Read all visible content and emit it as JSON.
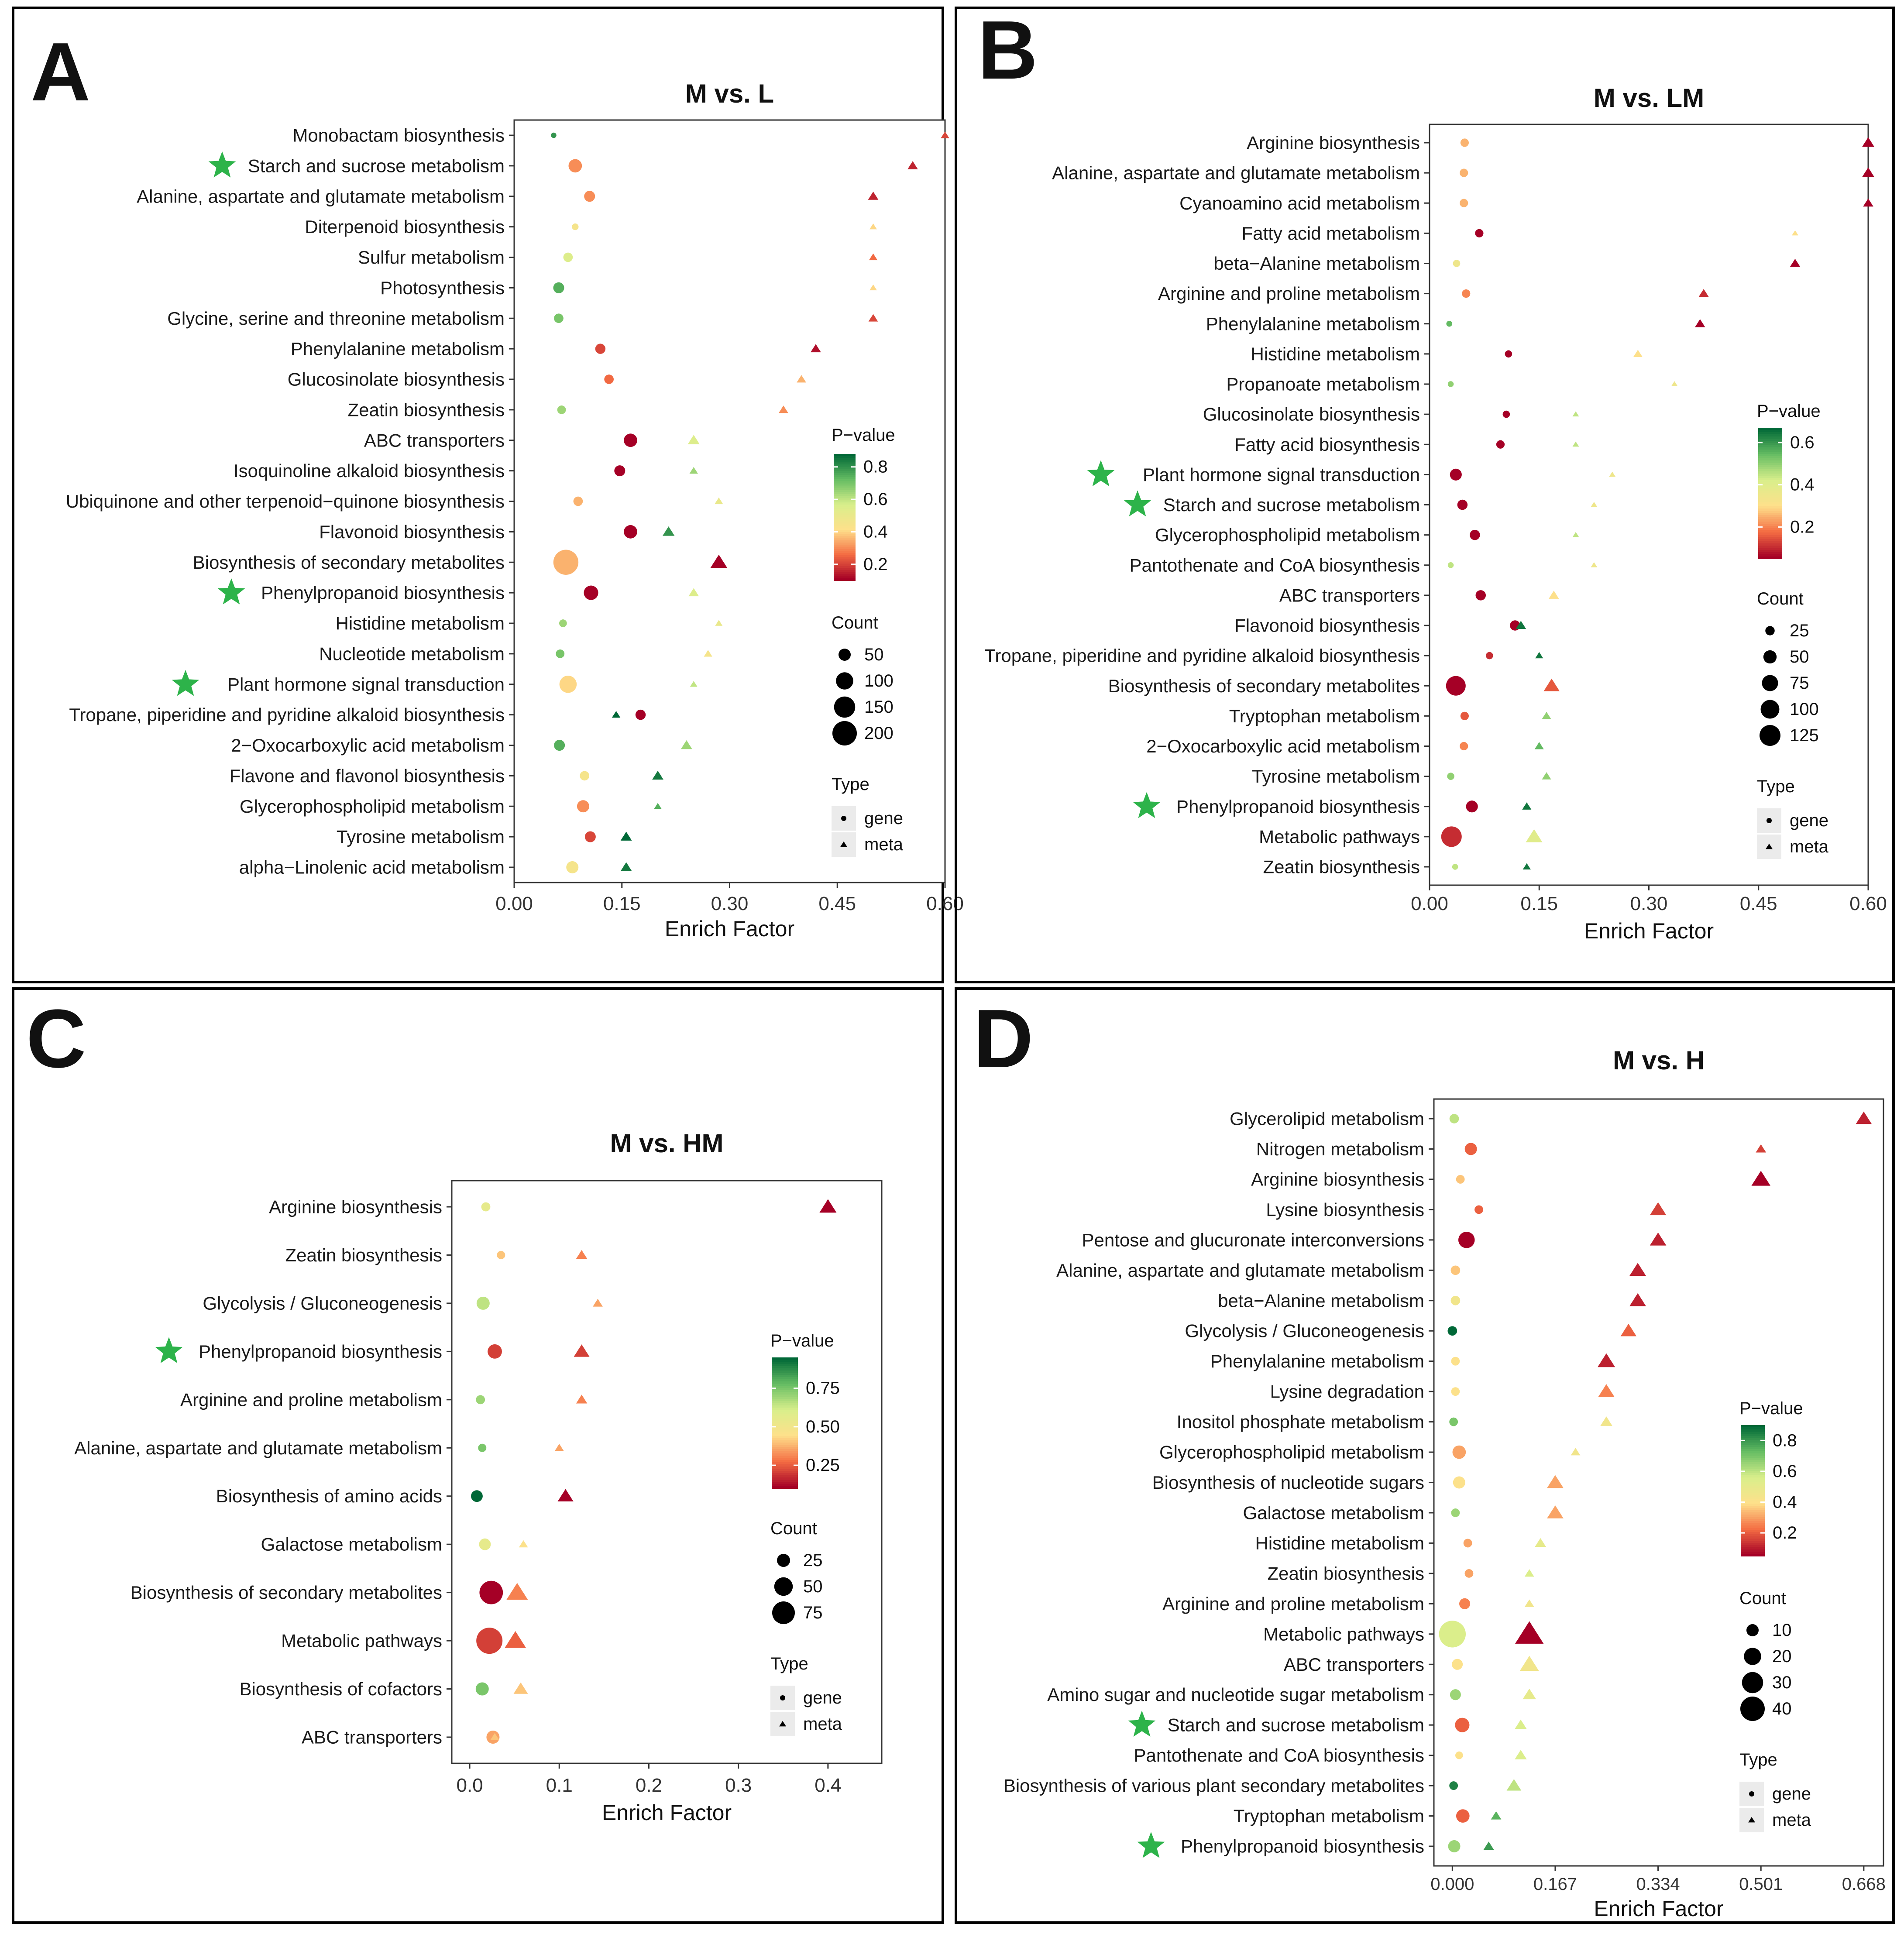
{
  "figure": {
    "pvalue_colors": [
      "#a50026",
      "#f46d43",
      "#fee08b",
      "#d9ef8b",
      "#66bd63",
      "#006837"
    ],
    "marker_symbols": {
      "gene": "circle",
      "meta": "triangle"
    }
  },
  "chart_data": [
    {
      "id": "A",
      "panel_label": "A",
      "type": "scatter",
      "title": "M vs. L",
      "xlabel": "Enrich Factor",
      "xlim": [
        0,
        0.6
      ],
      "xticks": [
        0.0,
        0.15,
        0.3,
        0.45,
        0.6
      ],
      "xtick_labels": [
        "0.00",
        "0.15",
        "0.30",
        "0.45",
        "0.60"
      ],
      "categories": [
        "Monobactam biosynthesis",
        "Starch and sucrose metabolism",
        "Alanine, aspartate and glutamate metabolism",
        "Diterpenoid biosynthesis",
        "Sulfur metabolism",
        "Photosynthesis",
        "Glycine, serine and threonine metabolism",
        "Phenylalanine metabolism",
        "Glucosinolate biosynthesis",
        "Zeatin biosynthesis",
        "ABC transporters",
        "Isoquinoline alkaloid biosynthesis",
        "Ubiquinone and other terpenoid−quinone biosynthesis",
        "Flavonoid biosynthesis",
        "Biosynthesis of secondary metabolites",
        "Phenylpropanoid biosynthesis",
        "Histidine metabolism",
        "Nucleotide metabolism",
        "Plant hormone signal transduction",
        "Tropane, piperidine and pyridine alkaloid biosynthesis",
        "2−Oxocarboxylic acid metabolism",
        "Flavone and flavonol biosynthesis",
        "Glycerophospholipid metabolism",
        "Tyrosine metabolism",
        "alpha−Linolenic acid metabolism"
      ],
      "starred": [
        "Starch and sucrose metabolism",
        "Phenylpropanoid biosynthesis",
        "Plant hormone signal transduction"
      ],
      "series": [
        {
          "name": "gene",
          "marker": "circle",
          "x": [
            0.055,
            0.085,
            0.105,
            0.085,
            0.075,
            0.062,
            0.062,
            0.12,
            0.132,
            0.066,
            0.162,
            0.147,
            0.089,
            0.162,
            0.072,
            0.107,
            0.068,
            0.064,
            0.075,
            0.176,
            0.063,
            0.098,
            0.096,
            0.106,
            0.081
          ],
          "pvalue": [
            0.8,
            0.3,
            0.3,
            0.45,
            0.55,
            0.75,
            0.7,
            0.2,
            0.25,
            0.65,
            0.05,
            0.1,
            0.35,
            0.05,
            0.35,
            0.1,
            0.65,
            0.7,
            0.4,
            0.1,
            0.75,
            0.45,
            0.3,
            0.2,
            0.45
          ],
          "count": [
            10,
            60,
            40,
            15,
            30,
            40,
            30,
            35,
            30,
            25,
            60,
            40,
            30,
            60,
            210,
            70,
            20,
            25,
            100,
            35,
            40,
            30,
            50,
            40,
            50
          ]
        },
        {
          "name": "meta",
          "marker": "triangle",
          "x": [
            0.6,
            0.555,
            0.5,
            0.5,
            0.5,
            0.5,
            0.5,
            0.42,
            0.4,
            0.375,
            0.25,
            0.25,
            0.285,
            0.215,
            0.285,
            0.25,
            0.285,
            0.27,
            0.25,
            0.142,
            0.24,
            0.2,
            0.2,
            0.156,
            0.156
          ],
          "pvalue": [
            0.2,
            0.15,
            0.15,
            0.4,
            0.25,
            0.4,
            0.2,
            0.12,
            0.35,
            0.3,
            0.55,
            0.65,
            0.5,
            0.8,
            0.08,
            0.55,
            0.5,
            0.45,
            0.6,
            0.9,
            0.65,
            0.85,
            0.75,
            0.9,
            0.85
          ],
          "count": [
            20,
            30,
            30,
            15,
            20,
            15,
            25,
            30,
            25,
            25,
            40,
            20,
            20,
            40,
            80,
            30,
            15,
            20,
            15,
            20,
            35,
            35,
            15,
            35,
            35
          ]
        }
      ],
      "legend": {
        "colorbar_title": "P−value",
        "colorbar_min": 0.1,
        "colorbar_max": 0.88,
        "colorbar_ticks": [
          0.2,
          0.4,
          0.6,
          0.8
        ],
        "colorbar_tick_labels": [
          "0.2",
          "0.4",
          "0.6",
          "0.8"
        ],
        "count_title": "Count",
        "count_values": [
          50,
          100,
          150,
          200
        ],
        "count_labels": [
          "50",
          "100",
          "150",
          "200"
        ],
        "type_title": "Type",
        "type_labels": [
          "gene",
          "meta"
        ]
      }
    },
    {
      "id": "B",
      "panel_label": "B",
      "type": "scatter",
      "title": "M vs. LM",
      "xlabel": "Enrich Factor",
      "xlim": [
        0,
        0.6
      ],
      "xticks": [
        0.0,
        0.15,
        0.3,
        0.45,
        0.6
      ],
      "xtick_labels": [
        "0.00",
        "0.15",
        "0.30",
        "0.45",
        "0.60"
      ],
      "categories": [
        "Arginine biosynthesis",
        "Alanine, aspartate and glutamate metabolism",
        "Cyanoamino acid metabolism",
        "Fatty acid metabolism",
        "beta−Alanine metabolism",
        "Arginine and proline metabolism",
        "Phenylalanine metabolism",
        "Histidine metabolism",
        "Propanoate metabolism",
        "Glucosinolate biosynthesis",
        "Fatty acid biosynthesis",
        "Plant hormone signal transduction",
        "Starch and sucrose metabolism",
        "Glycerophospholipid metabolism",
        "Pantothenate and CoA biosynthesis",
        "ABC transporters",
        "Flavonoid biosynthesis",
        "Tropane, piperidine and pyridine alkaloid biosynthesis",
        "Biosynthesis of secondary metabolites",
        "Tryptophan metabolism",
        "2−Oxocarboxylic acid metabolism",
        "Tyrosine metabolism",
        "Phenylpropanoid biosynthesis",
        "Metabolic pathways",
        "Zeatin biosynthesis"
      ],
      "starred": [
        "Plant hormone signal transduction",
        "Starch and sucrose metabolism",
        "Phenylpropanoid biosynthesis"
      ],
      "series": [
        {
          "name": "gene",
          "marker": "circle",
          "x": [
            0.048,
            0.047,
            0.047,
            0.068,
            0.037,
            0.05,
            0.027,
            0.108,
            0.029,
            0.105,
            0.097,
            0.036,
            0.045,
            0.062,
            0.029,
            0.07,
            0.117,
            0.082,
            0.036,
            0.048,
            0.047,
            0.029,
            0.058,
            0.03,
            0.035
          ],
          "pvalue": [
            0.25,
            0.25,
            0.25,
            0.05,
            0.35,
            0.2,
            0.55,
            0.05,
            0.5,
            0.05,
            0.05,
            0.05,
            0.05,
            0.05,
            0.45,
            0.05,
            0.05,
            0.1,
            0.05,
            0.15,
            0.2,
            0.5,
            0.05,
            0.1,
            0.45
          ],
          "count": [
            20,
            20,
            20,
            20,
            15,
            20,
            10,
            15,
            10,
            15,
            20,
            40,
            30,
            30,
            10,
            30,
            30,
            15,
            110,
            20,
            20,
            15,
            40,
            120,
            10
          ]
        },
        {
          "name": "meta",
          "marker": "triangle",
          "x": [
            0.6,
            0.6,
            0.6,
            0.5,
            0.5,
            0.375,
            0.37,
            0.285,
            0.335,
            0.2,
            0.2,
            0.25,
            0.225,
            0.2,
            0.225,
            0.17,
            0.125,
            0.15,
            0.167,
            0.16,
            0.15,
            0.16,
            0.133,
            0.143,
            0.133
          ],
          "pvalue": [
            0.05,
            0.05,
            0.05,
            0.3,
            0.05,
            0.1,
            0.05,
            0.3,
            0.35,
            0.45,
            0.45,
            0.35,
            0.35,
            0.45,
            0.35,
            0.3,
            0.65,
            0.65,
            0.15,
            0.5,
            0.55,
            0.5,
            0.65,
            0.4,
            0.65
          ],
          "count": [
            35,
            35,
            25,
            10,
            25,
            25,
            25,
            20,
            10,
            10,
            10,
            10,
            10,
            10,
            10,
            25,
            25,
            15,
            60,
            20,
            20,
            20,
            20,
            65,
            15
          ]
        }
      ],
      "legend": {
        "colorbar_title": "P−value",
        "colorbar_min": 0.05,
        "colorbar_max": 0.67,
        "colorbar_ticks": [
          0.2,
          0.4,
          0.6
        ],
        "colorbar_tick_labels": [
          "0.2",
          "0.4",
          "0.6"
        ],
        "count_title": "Count",
        "count_values": [
          25,
          50,
          75,
          100,
          125
        ],
        "count_labels": [
          "25",
          "50",
          "75",
          "100",
          "125"
        ],
        "type_title": "Type",
        "type_labels": [
          "gene",
          "meta"
        ]
      }
    },
    {
      "id": "C",
      "panel_label": "C",
      "type": "scatter",
      "title": "M vs. HM",
      "xlabel": "Enrich Factor",
      "xlim": [
        -0.02,
        0.46
      ],
      "xticks": [
        0.0,
        0.1,
        0.2,
        0.3,
        0.4
      ],
      "xtick_labels": [
        "0.0",
        "0.1",
        "0.2",
        "0.3",
        "0.4"
      ],
      "categories": [
        "Arginine biosynthesis",
        "Zeatin biosynthesis",
        "Glycolysis / Gluconeogenesis",
        "Phenylpropanoid biosynthesis",
        "Arginine and proline metabolism",
        "Alanine, aspartate and glutamate metabolism",
        "Biosynthesis of amino acids",
        "Galactose metabolism",
        "Biosynthesis of secondary metabolites",
        "Metabolic pathways",
        "Biosynthesis of cofactors",
        "ABC transporters"
      ],
      "starred": [
        "Phenylpropanoid biosynthesis"
      ],
      "series": [
        {
          "name": "gene",
          "marker": "circle",
          "x": [
            0.018,
            0.035,
            0.015,
            0.028,
            0.012,
            0.014,
            0.008,
            0.017,
            0.024,
            0.022,
            0.014,
            0.026
          ],
          "pvalue": [
            0.55,
            0.4,
            0.65,
            0.2,
            0.7,
            0.75,
            0.95,
            0.55,
            0.05,
            0.2,
            0.75,
            0.35
          ],
          "count": [
            12,
            10,
            25,
            30,
            12,
            10,
            20,
            20,
            80,
            100,
            25,
            25
          ]
        },
        {
          "name": "meta",
          "marker": "triangle",
          "x": [
            0.4,
            0.125,
            0.143,
            0.125,
            0.125,
            0.1,
            0.107,
            0.06,
            0.053,
            0.051,
            0.057,
            0.028
          ],
          "pvalue": [
            0.05,
            0.3,
            0.35,
            0.2,
            0.3,
            0.35,
            0.1,
            0.45,
            0.3,
            0.25,
            0.4,
            0.4
          ],
          "count": [
            35,
            15,
            12,
            30,
            15,
            10,
            30,
            10,
            55,
            55,
            25,
            10
          ]
        }
      ],
      "legend": {
        "colorbar_title": "P−value",
        "colorbar_min": 0.1,
        "colorbar_max": 0.95,
        "colorbar_ticks": [
          0.25,
          0.5,
          0.75
        ],
        "colorbar_tick_labels": [
          "0.25",
          "0.50",
          "0.75"
        ],
        "count_title": "Count",
        "count_values": [
          25,
          50,
          75
        ],
        "count_labels": [
          "25",
          "50",
          "75"
        ],
        "type_title": "Type",
        "type_labels": [
          "gene",
          "meta"
        ]
      }
    },
    {
      "id": "D",
      "panel_label": "D",
      "type": "scatter",
      "title": "M vs. H",
      "xlabel": "Enrich Factor",
      "xlim": [
        -0.03,
        0.7
      ],
      "xticks": [
        0.0,
        0.167,
        0.334,
        0.501,
        0.668
      ],
      "xtick_labels": [
        "0.000",
        "0.167",
        "0.334",
        "0.501",
        "0.668"
      ],
      "categories": [
        "Glycerolipid metabolism",
        "Nitrogen metabolism",
        "Arginine biosynthesis",
        "Lysine biosynthesis",
        "Pentose and glucuronate interconversions",
        "Alanine, aspartate and glutamate metabolism",
        "beta−Alanine metabolism",
        "Glycolysis / Gluconeogenesis",
        "Phenylalanine metabolism",
        "Lysine degradation",
        "Inositol phosphate metabolism",
        "Glycerophospholipid metabolism",
        "Biosynthesis of nucleotide sugars",
        "Galactose metabolism",
        "Histidine metabolism",
        "Zeatin biosynthesis",
        "Arginine and proline metabolism",
        "Metabolic pathways",
        "ABC transporters",
        "Amino sugar and nucleotide sugar metabolism",
        "Starch and sucrose metabolism",
        "Pantothenate and CoA biosynthesis",
        "Biosynthesis of various plant secondary metabolites",
        "Tryptophan metabolism",
        "Phenylpropanoid biosynthesis"
      ],
      "starred": [
        "Starch and sucrose metabolism",
        "Phenylpropanoid biosynthesis"
      ],
      "series": [
        {
          "name": "gene",
          "marker": "circle",
          "x": [
            0.003,
            0.03,
            0.013,
            0.043,
            0.023,
            0.005,
            0.005,
            0.0,
            0.005,
            0.005,
            0.002,
            0.011,
            0.011,
            0.005,
            0.025,
            0.027,
            0.02,
            0.0,
            0.008,
            0.005,
            0.016,
            0.011,
            0.002,
            0.017,
            0.003
          ],
          "pvalue": [
            0.6,
            0.2,
            0.35,
            0.2,
            0.05,
            0.35,
            0.45,
            0.9,
            0.4,
            0.4,
            0.7,
            0.3,
            0.4,
            0.65,
            0.3,
            0.3,
            0.25,
            0.55,
            0.4,
            0.65,
            0.2,
            0.4,
            0.85,
            0.2,
            0.65
          ],
          "count": [
            6,
            10,
            5,
            5,
            18,
            6,
            6,
            6,
            5,
            5,
            5,
            12,
            10,
            5,
            5,
            5,
            8,
            48,
            8,
            8,
            14,
            4,
            5,
            12,
            10
          ]
        },
        {
          "name": "meta",
          "marker": "triangle",
          "x": [
            0.668,
            0.501,
            0.501,
            0.334,
            0.334,
            0.301,
            0.301,
            0.286,
            0.25,
            0.25,
            0.25,
            0.2,
            0.167,
            0.167,
            0.143,
            0.125,
            0.125,
            0.125,
            0.125,
            0.125,
            0.111,
            0.111,
            0.1,
            0.071,
            0.059
          ],
          "pvalue": [
            0.1,
            0.15,
            0.05,
            0.15,
            0.1,
            0.1,
            0.1,
            0.2,
            0.1,
            0.25,
            0.45,
            0.45,
            0.3,
            0.3,
            0.5,
            0.55,
            0.45,
            0.05,
            0.45,
            0.5,
            0.55,
            0.55,
            0.6,
            0.75,
            0.8
          ],
          "count": [
            14,
            6,
            20,
            15,
            15,
            15,
            15,
            14,
            17,
            15,
            8,
            5,
            15,
            15,
            7,
            5,
            5,
            45,
            20,
            10,
            8,
            8,
            12,
            6,
            6
          ]
        }
      ],
      "legend": {
        "colorbar_title": "P−value",
        "colorbar_min": 0.05,
        "colorbar_max": 0.9,
        "colorbar_ticks": [
          0.2,
          0.4,
          0.6,
          0.8
        ],
        "colorbar_tick_labels": [
          "0.2",
          "0.4",
          "0.6",
          "0.8"
        ],
        "count_title": "Count",
        "count_values": [
          10,
          20,
          30,
          40
        ],
        "count_labels": [
          "10",
          "20",
          "30",
          "40"
        ],
        "type_title": "Type",
        "type_labels": [
          "gene",
          "meta"
        ]
      }
    }
  ]
}
